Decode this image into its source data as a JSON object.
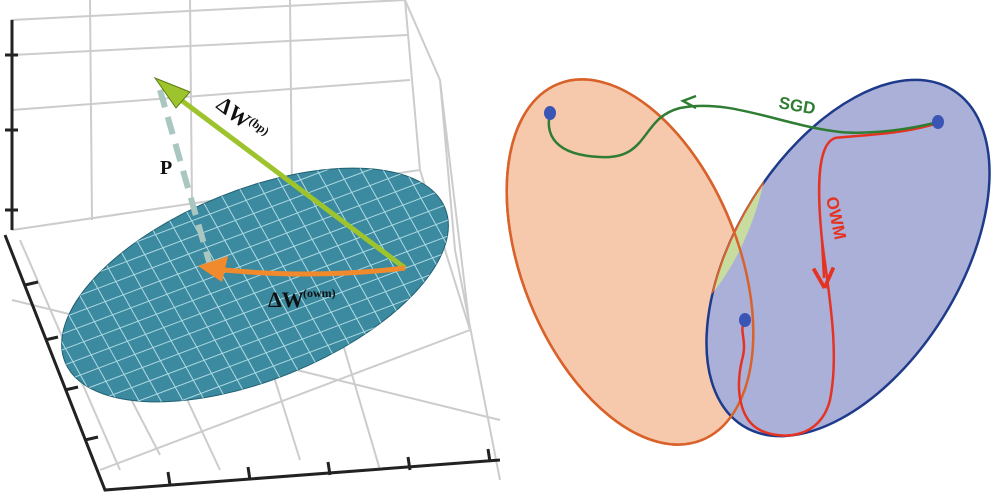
{
  "left_panel": {
    "label_p": "P",
    "label_bp": "ΔW",
    "label_bp_sup": "(bp)",
    "label_owm": "ΔW",
    "label_owm_sup": "(owm)",
    "colors": {
      "surface": "#3b8aa0",
      "bp_arrow": "#9dc42c",
      "owm_arrow": "#f08a2c",
      "projection": "#a9c6c0"
    }
  },
  "right_panel": {
    "label_sgd": "SGD",
    "label_owm": "OWM",
    "colors": {
      "task1_region": "#f6c9ad",
      "task2_region": "#aab0d8",
      "overlap": "#c8dca0",
      "sgd": "#2e7d32",
      "owm": "#e53222"
    }
  }
}
